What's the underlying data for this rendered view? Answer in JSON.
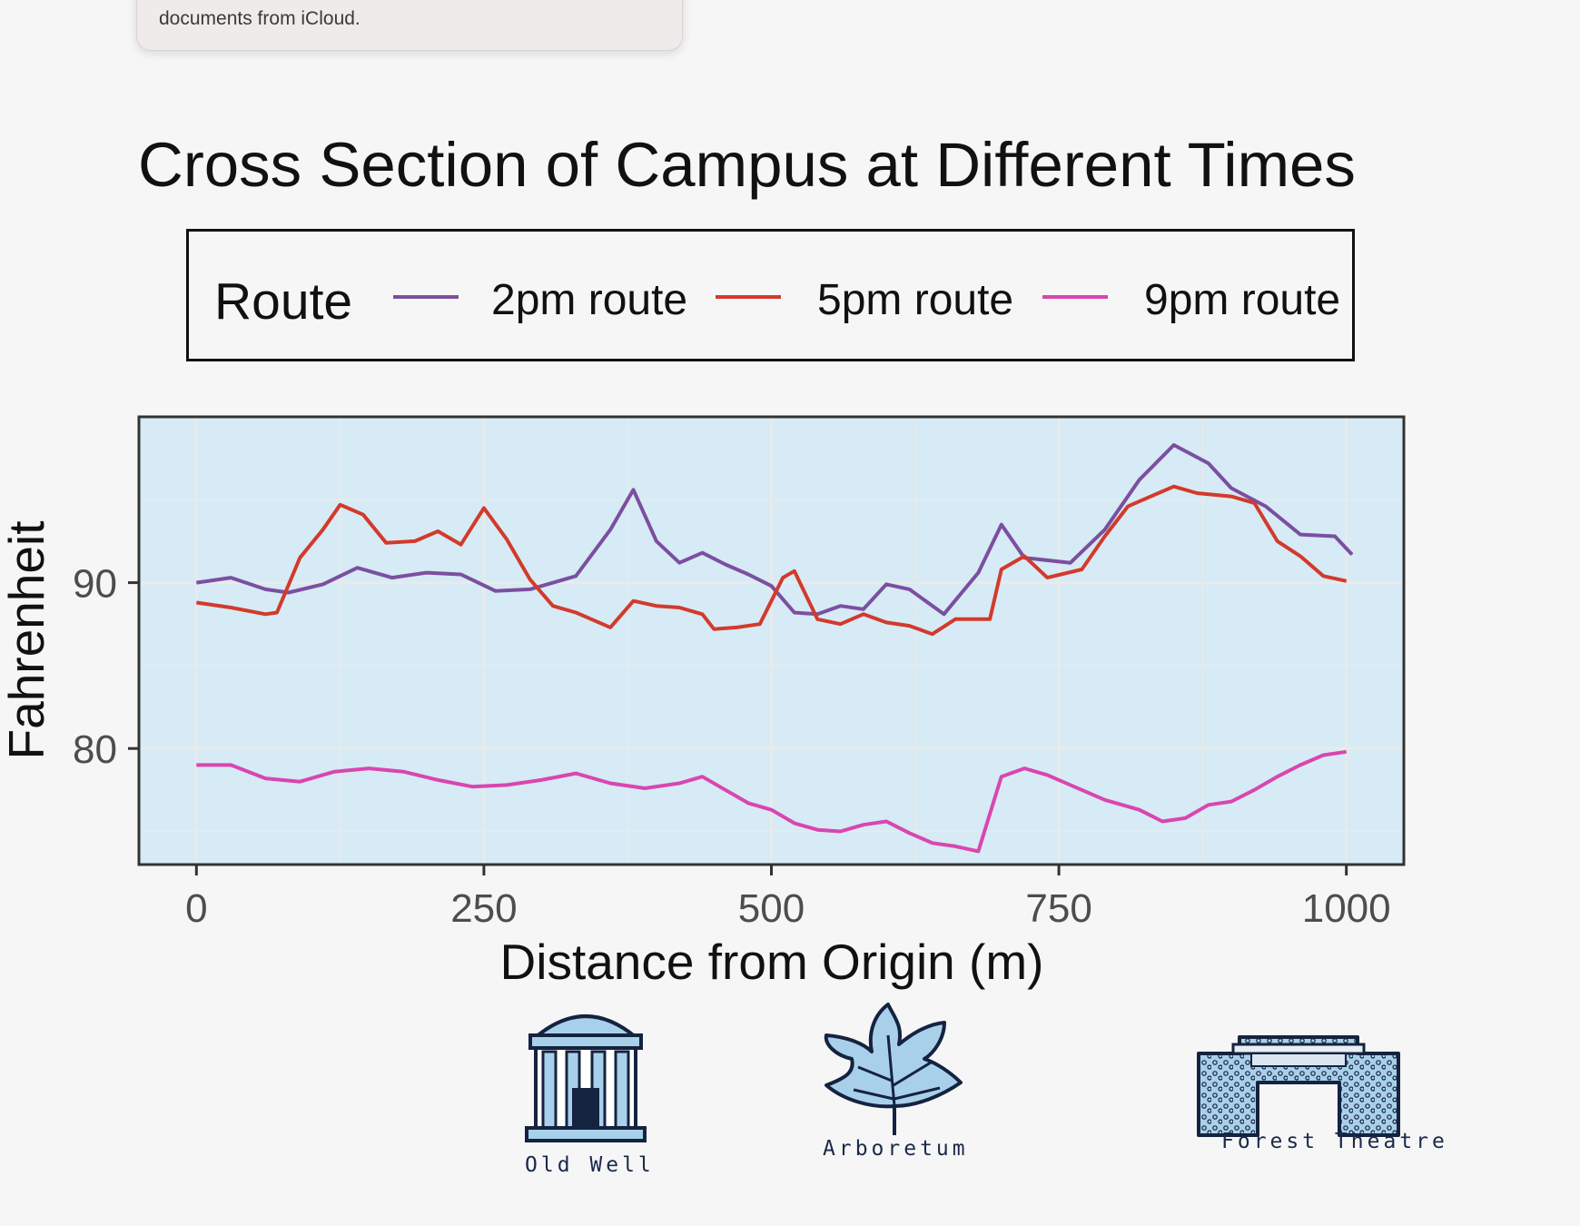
{
  "notification": {
    "text": "documents from iCloud."
  },
  "colors": {
    "panel_bg": "#d6ebf5",
    "grid": "#eaeaea",
    "series_2pm": "#7b4fa0",
    "series_5pm": "#d33a2c",
    "series_9pm": "#d946b0",
    "icon_fill": "#a9d0ea",
    "icon_stroke": "#14233f"
  },
  "chart_data": {
    "type": "line",
    "title": "Cross Section of Campus at Different Times",
    "xlabel": "Distance from Origin (m)",
    "ylabel": "Fahrenheit",
    "xlim": [
      -50,
      1050
    ],
    "ylim": [
      73,
      100
    ],
    "x_ticks": [
      0,
      250,
      500,
      750,
      1000
    ],
    "x_tick_labels": [
      "0",
      "250",
      "500",
      "750",
      "1000"
    ],
    "y_ticks": [
      80,
      90
    ],
    "y_tick_labels": [
      "80",
      "90"
    ],
    "grid": true,
    "legend": {
      "title": "Route",
      "position": "top"
    },
    "series": [
      {
        "name": "2pm route",
        "x": [
          0,
          30,
          60,
          80,
          110,
          140,
          170,
          200,
          230,
          260,
          290,
          330,
          360,
          380,
          400,
          420,
          440,
          460,
          480,
          500,
          520,
          540,
          560,
          580,
          600,
          620,
          650,
          680,
          700,
          720,
          760,
          790,
          820,
          850,
          880,
          900,
          930,
          960,
          990,
          1005
        ],
        "values": [
          90,
          90.3,
          89.6,
          89.4,
          89.9,
          90.9,
          90.3,
          90.6,
          90.5,
          89.5,
          89.6,
          90.4,
          93.2,
          95.6,
          92.5,
          91.2,
          91.8,
          91.1,
          90.5,
          89.8,
          88.2,
          88.1,
          88.6,
          88.4,
          89.9,
          89.6,
          88.1,
          90.6,
          93.5,
          91.5,
          91.2,
          93.2,
          96.2,
          98.3,
          97.2,
          95.7,
          94.6,
          92.9,
          92.8,
          91.7
        ]
      },
      {
        "name": "5pm route",
        "x": [
          0,
          30,
          60,
          70,
          90,
          110,
          125,
          145,
          165,
          190,
          210,
          230,
          250,
          270,
          290,
          310,
          330,
          360,
          380,
          400,
          420,
          440,
          450,
          470,
          490,
          510,
          520,
          540,
          560,
          580,
          600,
          620,
          640,
          660,
          690,
          700,
          720,
          740,
          770,
          790,
          810,
          830,
          850,
          870,
          900,
          920,
          940,
          960,
          980,
          1000
        ],
        "values": [
          88.8,
          88.5,
          88.1,
          88.2,
          91.5,
          93.2,
          94.7,
          94.1,
          92.4,
          92.5,
          93.1,
          92.3,
          94.5,
          92.6,
          90.2,
          88.6,
          88.2,
          87.3,
          88.9,
          88.6,
          88.5,
          88.1,
          87.2,
          87.3,
          87.5,
          90.3,
          90.7,
          87.8,
          87.5,
          88.1,
          87.6,
          87.4,
          86.9,
          87.8,
          87.8,
          90.8,
          91.6,
          90.3,
          90.8,
          92.8,
          94.6,
          95.2,
          95.8,
          95.4,
          95.2,
          94.8,
          92.5,
          91.6,
          90.4,
          90.1
        ]
      },
      {
        "name": "9pm route",
        "x": [
          0,
          30,
          60,
          90,
          120,
          150,
          180,
          210,
          240,
          270,
          300,
          330,
          360,
          390,
          420,
          440,
          460,
          480,
          500,
          520,
          540,
          560,
          580,
          600,
          620,
          640,
          660,
          680,
          700,
          720,
          740,
          760,
          790,
          820,
          840,
          860,
          880,
          900,
          920,
          940,
          960,
          980,
          1000
        ],
        "values": [
          79,
          79,
          78.2,
          78,
          78.6,
          78.8,
          78.6,
          78.1,
          77.7,
          77.8,
          78.1,
          78.5,
          77.9,
          77.6,
          77.9,
          78.3,
          77.5,
          76.7,
          76.3,
          75.5,
          75.1,
          75,
          75.4,
          75.6,
          74.9,
          74.3,
          74.1,
          73.8,
          78.3,
          78.8,
          78.4,
          77.8,
          76.9,
          76.3,
          75.6,
          75.8,
          76.6,
          76.8,
          77.5,
          78.3,
          79,
          79.6,
          79.8
        ]
      }
    ]
  },
  "landmarks": [
    {
      "name": "old-well",
      "caption": "Old Well",
      "icon": "old-well-icon"
    },
    {
      "name": "arboretum",
      "caption": "Arboretum",
      "icon": "leaf-icon"
    },
    {
      "name": "forest-theatre",
      "caption": "Forest Theatre",
      "icon": "forest-theatre-icon"
    }
  ]
}
